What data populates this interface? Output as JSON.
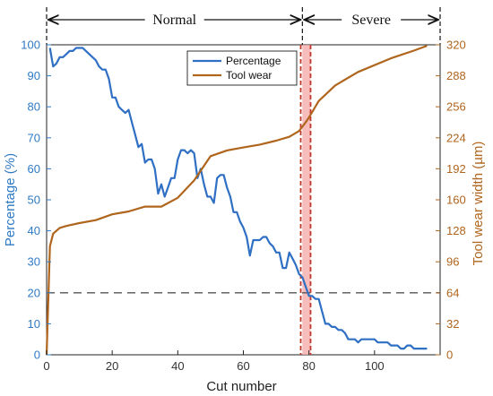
{
  "chart_data": {
    "type": "line",
    "title": "",
    "xlabel": "Cut number",
    "ylabel_left": "Percentage (%)",
    "ylabel_right": "Tool wear width (µm)",
    "xlim": [
      0,
      120
    ],
    "ylim_left": [
      0,
      100
    ],
    "ylim_right": [
      0,
      320
    ],
    "xticks": [
      "0",
      "20",
      "40",
      "60",
      "80",
      "100"
    ],
    "yticks_left": [
      "0",
      "10",
      "20",
      "30",
      "40",
      "50",
      "60",
      "70",
      "80",
      "90",
      "100"
    ],
    "yticks_right": [
      "0",
      "32",
      "64",
      "96",
      "128",
      "160",
      "192",
      "224",
      "256",
      "288",
      "320"
    ],
    "grid": false,
    "legend_position": "top-center",
    "phases": [
      {
        "label": "Normal",
        "x_start": 0,
        "x_end": 78
      },
      {
        "label": "Severe",
        "x_start": 78,
        "x_end": 118
      }
    ],
    "threshold_left": 20,
    "boundary_lines_x": [
      77.5,
      80.5
    ],
    "highlight_band_x": [
      78,
      80.5
    ],
    "series": [
      {
        "name": "Percentage",
        "axis": "left",
        "color": "#2f6fc4",
        "x": [
          1,
          2,
          3,
          4,
          5,
          6,
          7,
          8,
          9,
          10,
          11,
          12,
          13,
          14,
          15,
          16,
          17,
          18,
          19,
          20,
          21,
          22,
          23,
          24,
          25,
          26,
          27,
          28,
          29,
          30,
          31,
          32,
          33,
          34,
          35,
          36,
          37,
          38,
          39,
          40,
          41,
          42,
          43,
          44,
          45,
          46,
          47,
          48,
          49,
          50,
          51,
          52,
          53,
          54,
          55,
          56,
          57,
          58,
          59,
          60,
          61,
          62,
          63,
          64,
          65,
          66,
          67,
          68,
          69,
          70,
          71,
          72,
          73,
          74,
          75,
          76,
          77,
          78,
          79,
          80,
          81,
          82,
          83,
          84,
          85,
          86,
          87,
          88,
          89,
          90,
          91,
          92,
          93,
          94,
          95,
          96,
          97,
          98,
          99,
          100,
          101,
          102,
          103,
          104,
          105,
          106,
          107,
          108,
          109,
          110,
          111,
          112,
          113,
          114,
          115,
          116
        ],
        "values": [
          99,
          93,
          94,
          96,
          96,
          97,
          98,
          98,
          99,
          99,
          99,
          98,
          97,
          96,
          95,
          93,
          92,
          92,
          89,
          83,
          83,
          80,
          79,
          78,
          79,
          75,
          71,
          67,
          68,
          62,
          63,
          63,
          60,
          52,
          55,
          51,
          54,
          57,
          57,
          63,
          66,
          66,
          65,
          66,
          65,
          57,
          60,
          55,
          51,
          51,
          49,
          57,
          58,
          58,
          54,
          51,
          46,
          46,
          43,
          41,
          38,
          32,
          37,
          37,
          37,
          38,
          38,
          36,
          35,
          33,
          33,
          28,
          28,
          33,
          31,
          29,
          26,
          25,
          22,
          19,
          19,
          18,
          18,
          14,
          10,
          10,
          9,
          9,
          8,
          8,
          7,
          5,
          5,
          5,
          4,
          5,
          5,
          5,
          5,
          5,
          4,
          4,
          4,
          4,
          3,
          3,
          3,
          2,
          2,
          3,
          3,
          2,
          2,
          2,
          2,
          2
        ],
        "values_note_unused": null
      },
      {
        "name": "Tool wear",
        "axis": "right",
        "color": "#b0651d",
        "x": [
          0,
          1,
          2,
          4,
          6,
          10,
          15,
          20,
          25,
          30,
          35,
          40,
          45,
          50,
          55,
          60,
          65,
          70,
          74,
          77,
          79,
          80,
          83,
          88,
          95,
          105,
          112,
          116
        ],
        "values": [
          0,
          112,
          125,
          131,
          133,
          136,
          139,
          145,
          148,
          153,
          153,
          162,
          180,
          205,
          211,
          214,
          217,
          221,
          225,
          231,
          240,
          245,
          262,
          278,
          292,
          306,
          314,
          319
        ]
      }
    ],
    "legend_items": [
      "Percentage",
      "Tool wear"
    ]
  }
}
